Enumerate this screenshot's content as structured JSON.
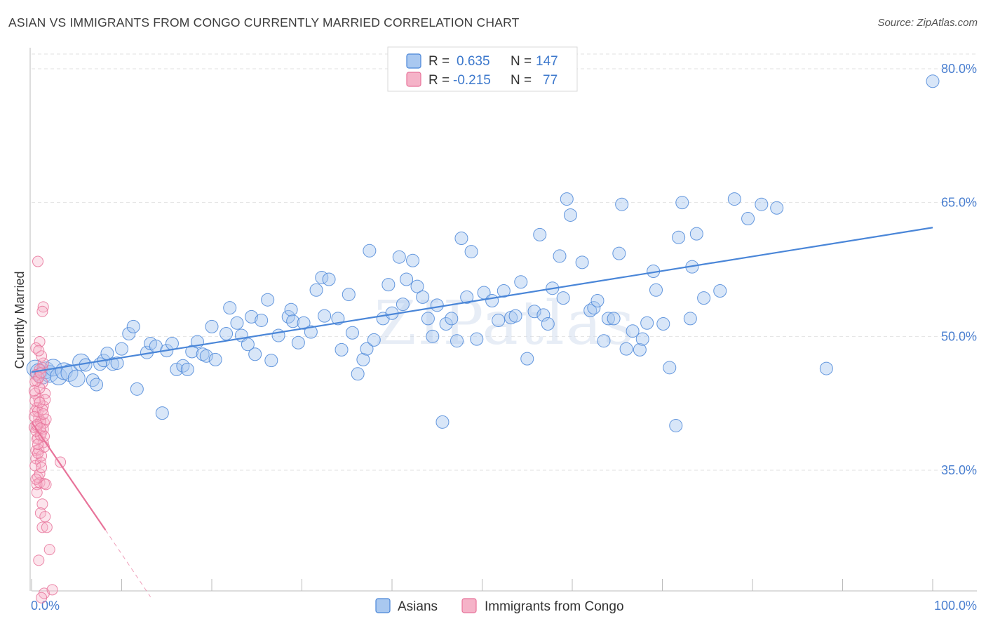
{
  "title": "ASIAN VS IMMIGRANTS FROM CONGO CURRENTLY MARRIED CORRELATION CHART",
  "source": "Source: ZipAtlas.com",
  "watermark": "ZIPatlas",
  "colors": {
    "asian": "#4a86d8",
    "asian_fill": "#a9c8f0",
    "congo": "#e8739a",
    "congo_fill": "#f5b3c8",
    "tick": "#4a7fd0",
    "grid": "#e2e2e2"
  },
  "legend": {
    "rows": [
      {
        "r_label": "R =",
        "r_value": "0.635",
        "n_label": "N =",
        "n_value": "147"
      },
      {
        "r_label": "R =",
        "r_value": "-0.215",
        "n_label": "N =",
        "n_value": "77"
      }
    ]
  },
  "chart_data": {
    "type": "scatter",
    "ylabel": "Currently Married",
    "xlabel": "",
    "x_tick_labels": [
      "0.0%",
      "100.0%"
    ],
    "y_tick_labels": [
      "35.0%",
      "50.0%",
      "65.0%",
      "80.0%"
    ],
    "y_ticks": [
      35,
      50,
      65,
      80
    ],
    "xlim": [
      0,
      100
    ],
    "ylim": [
      20,
      81
    ],
    "grid": true,
    "legend_position": "top-center",
    "series": [
      {
        "name": "Asians",
        "color": "#4a86d8",
        "trend": {
          "x0": 0,
          "y0": 46.0,
          "x1": 100,
          "y1": 62.2
        },
        "points": [
          [
            0.4,
            46.4
          ],
          [
            0.8,
            46.0
          ],
          [
            1.2,
            45.6
          ],
          [
            1.6,
            46.2
          ],
          [
            2.0,
            45.8
          ],
          [
            2.4,
            46.5
          ],
          [
            3.0,
            45.5
          ],
          [
            3.6,
            46.1
          ],
          [
            4.2,
            45.9
          ],
          [
            5.0,
            45.3
          ],
          [
            5.5,
            47.1
          ],
          [
            6.0,
            46.8
          ],
          [
            6.8,
            45.1
          ],
          [
            7.2,
            44.6
          ],
          [
            7.6,
            46.9
          ],
          [
            8.0,
            47.3
          ],
          [
            8.4,
            48.1
          ],
          [
            9.0,
            46.9
          ],
          [
            9.5,
            47.0
          ],
          [
            10.0,
            48.6
          ],
          [
            10.8,
            50.3
          ],
          [
            11.3,
            51.1
          ],
          [
            11.7,
            44.1
          ],
          [
            12.8,
            48.2
          ],
          [
            13.2,
            49.2
          ],
          [
            13.8,
            48.9
          ],
          [
            14.5,
            41.4
          ],
          [
            15.0,
            48.4
          ],
          [
            15.6,
            49.2
          ],
          [
            16.1,
            46.3
          ],
          [
            16.8,
            46.7
          ],
          [
            17.3,
            46.3
          ],
          [
            17.8,
            48.3
          ],
          [
            18.4,
            49.4
          ],
          [
            19.0,
            48.0
          ],
          [
            19.4,
            47.8
          ],
          [
            20.4,
            47.4
          ],
          [
            20.0,
            51.1
          ],
          [
            21.6,
            50.3
          ],
          [
            22.0,
            53.2
          ],
          [
            22.8,
            51.5
          ],
          [
            23.3,
            50.1
          ],
          [
            24.4,
            52.2
          ],
          [
            24.0,
            49.1
          ],
          [
            24.8,
            48.0
          ],
          [
            25.5,
            51.8
          ],
          [
            26.2,
            54.1
          ],
          [
            26.6,
            47.3
          ],
          [
            27.4,
            50.1
          ],
          [
            28.5,
            52.2
          ],
          [
            28.8,
            53.0
          ],
          [
            29.0,
            51.7
          ],
          [
            29.6,
            49.3
          ],
          [
            30.2,
            51.5
          ],
          [
            31.0,
            50.5
          ],
          [
            31.6,
            55.2
          ],
          [
            32.2,
            56.6
          ],
          [
            32.5,
            52.3
          ],
          [
            33.0,
            56.4
          ],
          [
            34.0,
            52.0
          ],
          [
            34.4,
            48.5
          ],
          [
            35.2,
            54.7
          ],
          [
            35.6,
            50.4
          ],
          [
            36.2,
            45.8
          ],
          [
            36.8,
            47.4
          ],
          [
            37.2,
            48.6
          ],
          [
            37.5,
            59.6
          ],
          [
            38.0,
            49.6
          ],
          [
            39.0,
            52.0
          ],
          [
            39.6,
            55.8
          ],
          [
            40.0,
            52.6
          ],
          [
            40.8,
            58.9
          ],
          [
            41.2,
            53.6
          ],
          [
            41.6,
            56.4
          ],
          [
            42.3,
            58.5
          ],
          [
            42.8,
            55.6
          ],
          [
            43.4,
            54.4
          ],
          [
            44.0,
            52.0
          ],
          [
            44.5,
            50.0
          ],
          [
            45.0,
            53.5
          ],
          [
            45.6,
            40.4
          ],
          [
            46.0,
            51.4
          ],
          [
            46.6,
            52.0
          ],
          [
            47.2,
            49.5
          ],
          [
            47.7,
            61.0
          ],
          [
            48.3,
            54.4
          ],
          [
            48.8,
            59.5
          ],
          [
            49.4,
            49.7
          ],
          [
            50.2,
            54.9
          ],
          [
            51.1,
            54.0
          ],
          [
            51.8,
            51.8
          ],
          [
            52.4,
            55.1
          ],
          [
            53.2,
            52.1
          ],
          [
            53.7,
            52.3
          ],
          [
            54.3,
            56.1
          ],
          [
            55.0,
            47.5
          ],
          [
            55.8,
            52.8
          ],
          [
            56.4,
            61.4
          ],
          [
            56.8,
            52.4
          ],
          [
            57.3,
            51.4
          ],
          [
            57.8,
            55.4
          ],
          [
            58.6,
            59.0
          ],
          [
            59.0,
            54.3
          ],
          [
            59.4,
            65.4
          ],
          [
            59.8,
            63.6
          ],
          [
            61.1,
            58.3
          ],
          [
            62.0,
            52.9
          ],
          [
            62.4,
            53.2
          ],
          [
            62.8,
            54.0
          ],
          [
            63.5,
            49.5
          ],
          [
            64.0,
            52.0
          ],
          [
            64.6,
            52.0
          ],
          [
            65.2,
            59.3
          ],
          [
            65.5,
            64.8
          ],
          [
            66.0,
            48.6
          ],
          [
            66.7,
            50.6
          ],
          [
            67.5,
            48.5
          ],
          [
            67.8,
            49.7
          ],
          [
            68.3,
            51.5
          ],
          [
            69.0,
            57.3
          ],
          [
            69.3,
            55.2
          ],
          [
            70.1,
            51.4
          ],
          [
            70.8,
            46.5
          ],
          [
            71.5,
            40.0
          ],
          [
            71.8,
            61.1
          ],
          [
            72.2,
            65.0
          ],
          [
            73.1,
            52.0
          ],
          [
            73.3,
            57.8
          ],
          [
            73.8,
            61.5
          ],
          [
            74.6,
            54.3
          ],
          [
            76.4,
            55.1
          ],
          [
            78.0,
            65.4
          ],
          [
            79.5,
            63.2
          ],
          [
            81.0,
            64.8
          ],
          [
            82.7,
            64.4
          ],
          [
            88.2,
            46.4
          ],
          [
            100.0,
            78.6
          ]
        ]
      },
      {
        "name": "Immigrants from Congo",
        "color": "#e8739a",
        "trend": {
          "x0": 0,
          "y0": 40.4,
          "x1": 8.2,
          "y1": 28.3,
          "dash_x1": 13.2,
          "dash_y1": 20.8
        },
        "points": [
          [
            0.4,
            41.6
          ],
          [
            0.6,
            45.0
          ],
          [
            0.3,
            39.8
          ],
          [
            0.8,
            43.0
          ],
          [
            1.0,
            40.5
          ],
          [
            0.5,
            37.2
          ],
          [
            0.7,
            38.6
          ],
          [
            1.2,
            46.5
          ],
          [
            0.9,
            49.4
          ],
          [
            1.3,
            47.0
          ],
          [
            0.4,
            43.6
          ],
          [
            0.6,
            42.0
          ],
          [
            0.8,
            40.9
          ],
          [
            1.1,
            39.2
          ],
          [
            1.4,
            40.3
          ],
          [
            0.5,
            36.3
          ],
          [
            0.7,
            34.2
          ],
          [
            1.0,
            35.9
          ],
          [
            1.3,
            38.1
          ],
          [
            0.6,
            33.4
          ],
          [
            0.9,
            33.6
          ],
          [
            1.2,
            31.2
          ],
          [
            0.7,
            58.4
          ],
          [
            1.3,
            53.3
          ],
          [
            0.5,
            48.7
          ],
          [
            0.9,
            46.3
          ],
          [
            1.2,
            44.8
          ],
          [
            1.5,
            43.6
          ],
          [
            0.4,
            42.8
          ],
          [
            0.7,
            41.6
          ],
          [
            1.0,
            40.4
          ],
          [
            1.3,
            39.6
          ],
          [
            0.6,
            38.5
          ],
          [
            0.8,
            37.3
          ],
          [
            1.1,
            36.6
          ],
          [
            0.4,
            35.5
          ],
          [
            0.9,
            34.6
          ],
          [
            1.4,
            33.5
          ],
          [
            0.6,
            32.5
          ],
          [
            1.0,
            30.2
          ],
          [
            1.5,
            29.8
          ],
          [
            1.2,
            28.6
          ],
          [
            1.7,
            28.6
          ],
          [
            2.0,
            26.1
          ],
          [
            0.8,
            24.9
          ],
          [
            1.4,
            21.2
          ],
          [
            2.3,
            21.6
          ],
          [
            3.2,
            35.9
          ],
          [
            1.1,
            20.7
          ],
          [
            0.5,
            45.7
          ],
          [
            0.9,
            44.2
          ],
          [
            1.3,
            42.2
          ],
          [
            0.3,
            41.0
          ],
          [
            0.6,
            39.9
          ],
          [
            1.0,
            38.9
          ],
          [
            1.4,
            37.6
          ],
          [
            0.7,
            36.9
          ],
          [
            0.4,
            44.9
          ],
          [
            1.1,
            47.8
          ],
          [
            0.8,
            48.4
          ],
          [
            1.6,
            40.7
          ],
          [
            0.5,
            39.4
          ],
          [
            1.2,
            41.8
          ],
          [
            1.5,
            42.9
          ],
          [
            0.3,
            43.9
          ],
          [
            0.9,
            42.6
          ],
          [
            1.3,
            41.3
          ],
          [
            0.6,
            40.1
          ],
          [
            1.0,
            39.7
          ],
          [
            1.4,
            38.8
          ],
          [
            0.7,
            37.9
          ],
          [
            1.1,
            35.3
          ],
          [
            0.5,
            34.0
          ],
          [
            1.6,
            33.4
          ],
          [
            0.8,
            45.4
          ],
          [
            1.2,
            52.8
          ],
          [
            1.0,
            45.9
          ]
        ]
      }
    ]
  },
  "bottom_legend": {
    "items": [
      {
        "label": "Asians"
      },
      {
        "label": "Immigrants from Congo"
      }
    ]
  }
}
